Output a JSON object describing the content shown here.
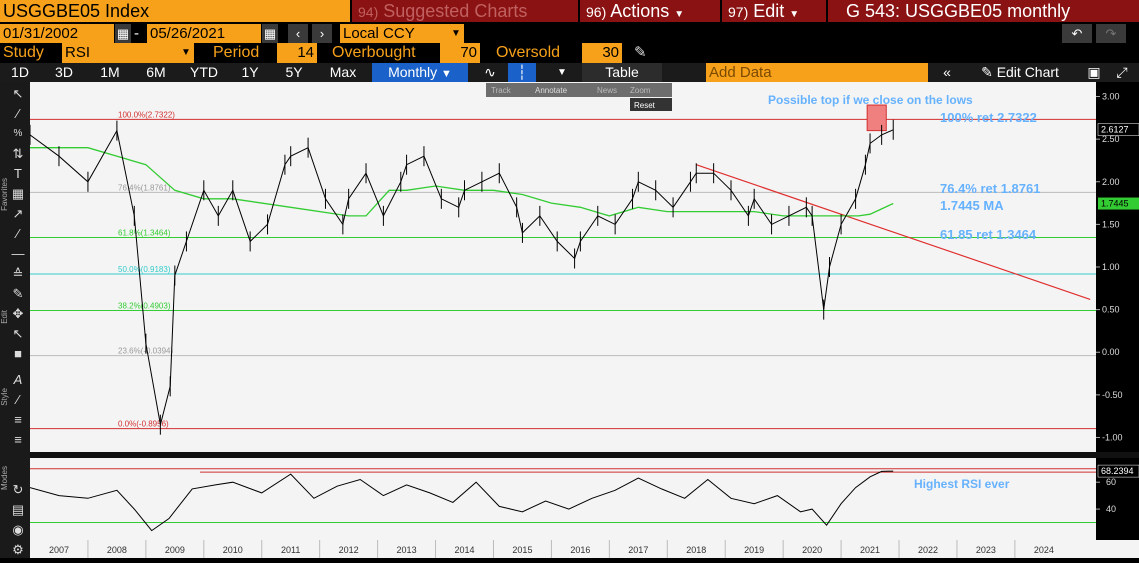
{
  "header": {
    "ticker": "USGGBE05 Index",
    "suggested_num": "94)",
    "suggested_label": "Suggested Charts",
    "actions_num": "96)",
    "actions_label": "Actions",
    "edit_num": "97)",
    "edit_label": "Edit",
    "title": "G 543: USGGBE05 monthly"
  },
  "daterange": {
    "start": "01/31/2002",
    "sep": "-",
    "end": "05/26/2021",
    "currency": "Local CCY"
  },
  "study": {
    "label": "Study",
    "value": "RSI",
    "period_label": "Period",
    "period": "14",
    "overbought_label": "Overbought",
    "overbought": "70",
    "oversold_label": "Oversold",
    "oversold": "30"
  },
  "toolbar": {
    "ranges": [
      "1D",
      "3D",
      "1M",
      "6M",
      "YTD",
      "1Y",
      "5Y",
      "Max"
    ],
    "frequency": "Monthly",
    "table_label": "Table",
    "add_data_placeholder": "Add Data",
    "edit_chart_label": "Edit Chart"
  },
  "chart_tools": {
    "track": "Track",
    "annotate": "Annotate",
    "news": "News",
    "zoom": "Zoom",
    "reset": "Reset"
  },
  "side_labels": {
    "favorites": "Favorites",
    "edit": "Edit",
    "style": "Style",
    "modes": "Modes"
  },
  "colors": {
    "orange": "#f7a11a",
    "red_tab": "#8b1212",
    "price": "#000000",
    "ma": "#33cc33",
    "trend": "#e03030",
    "annotation": "#66b2ff"
  },
  "chart_data": [
    {
      "type": "line",
      "ylim": [
        -1.1,
        3.1
      ],
      "yticks": [
        "3.00",
        "2.50",
        "2.00",
        "1.50",
        "1.00",
        "0.50",
        "0.00",
        "-0.50",
        "-1.00"
      ],
      "ytick_values": [
        3.0,
        2.5,
        2.0,
        1.5,
        1.0,
        0.5,
        0.0,
        -0.5,
        -1.0
      ],
      "last_price_label": "2.6127",
      "last_ma_label": "1.7445",
      "last_price": 2.6127,
      "last_ma": 1.7445,
      "fib_levels": [
        {
          "label": "100.0%(2.7322)",
          "value": 2.7322,
          "color": "#d23030"
        },
        {
          "label": "76.4%(1.8761)",
          "value": 1.8761,
          "color": "#bbbbbb"
        },
        {
          "label": "61.8%(1.3464)",
          "value": 1.3464,
          "color": "#33cc33"
        },
        {
          "label": "50.0%(0.9183)",
          "value": 0.9183,
          "color": "#33cccc"
        },
        {
          "label": "38.2%(0.4903)",
          "value": 0.4903,
          "color": "#33cc33"
        },
        {
          "label": "23.6%(-0.0394)",
          "value": -0.0394,
          "color": "#bbbbbb"
        },
        {
          "label": "0.0%(-0.8956)",
          "value": -0.8956,
          "color": "#d23030"
        }
      ],
      "annotations": [
        "Possible top if we close on the lows",
        "100% ret 2.7322",
        "76.4% ret 1.8761",
        "1.7445 MA",
        "61.85 ret 1.3464"
      ],
      "x": [
        2006.5,
        2007.0,
        2007.5,
        2008.0,
        2008.3,
        2008.5,
        2008.75,
        2008.92,
        2009.0,
        2009.2,
        2009.5,
        2009.75,
        2010.0,
        2010.3,
        2010.6,
        2010.9,
        2011.0,
        2011.3,
        2011.6,
        2011.9,
        2012.0,
        2012.3,
        2012.6,
        2012.9,
        2013.0,
        2013.3,
        2013.6,
        2013.9,
        2014.0,
        2014.3,
        2014.6,
        2014.9,
        2015.0,
        2015.3,
        2015.6,
        2015.9,
        2016.0,
        2016.3,
        2016.6,
        2016.9,
        2017.0,
        2017.3,
        2017.6,
        2017.9,
        2018.0,
        2018.3,
        2018.6,
        2018.9,
        2019.0,
        2019.3,
        2019.6,
        2019.9,
        2020.0,
        2020.2,
        2020.3,
        2020.5,
        2020.75,
        2020.92,
        2021.0,
        2021.2,
        2021.4
      ],
      "values": [
        2.55,
        2.3,
        2.0,
        2.6,
        1.6,
        0.1,
        -0.85,
        -0.4,
        0.9,
        1.3,
        1.9,
        1.6,
        1.9,
        1.3,
        1.5,
        2.2,
        2.3,
        2.4,
        1.8,
        1.5,
        1.8,
        2.1,
        1.6,
        2.0,
        2.2,
        2.3,
        1.8,
        1.7,
        1.9,
        2.0,
        2.1,
        1.7,
        1.4,
        1.6,
        1.3,
        1.1,
        1.3,
        1.6,
        1.5,
        1.8,
        2.0,
        1.9,
        1.7,
        2.0,
        2.1,
        2.1,
        1.9,
        1.6,
        1.8,
        1.5,
        1.6,
        1.7,
        1.6,
        0.5,
        1.0,
        1.5,
        1.8,
        2.2,
        2.45,
        2.55,
        2.61
      ],
      "ma_x": [
        2006.5,
        2007.5,
        2008.5,
        2009.0,
        2009.5,
        2010.0,
        2011.0,
        2012.0,
        2012.3,
        2012.7,
        2013.0,
        2013.5,
        2014.0,
        2014.5,
        2015.0,
        2015.5,
        2016.0,
        2016.5,
        2017.0,
        2017.5,
        2018.0,
        2018.5,
        2019.0,
        2019.5,
        2020.0,
        2020.5,
        2020.8,
        2021.0,
        2021.4
      ],
      "ma_values": [
        2.4,
        2.4,
        2.2,
        1.9,
        1.8,
        1.8,
        1.7,
        1.6,
        1.6,
        1.9,
        1.9,
        1.95,
        1.9,
        1.9,
        1.85,
        1.75,
        1.7,
        1.6,
        1.7,
        1.65,
        1.65,
        1.65,
        1.65,
        1.6,
        1.6,
        1.6,
        1.6,
        1.62,
        1.7445
      ],
      "trendline": {
        "x": [
          2018.0,
          2024.8
        ],
        "values": [
          2.2,
          0.62
        ]
      },
      "top_box": {
        "x": [
          2020.95,
          2021.28
        ],
        "values": [
          2.6,
          2.9
        ]
      }
    },
    {
      "type": "line",
      "title": "RSI",
      "ylim": [
        20,
        75
      ],
      "yticks": [
        "60",
        "40"
      ],
      "ytick_values": [
        60,
        40
      ],
      "overbought": 70,
      "oversold": 30,
      "last_label": "68.2394",
      "annotation": "Highest RSI ever",
      "x": [
        2006.5,
        2007.0,
        2007.5,
        2008.0,
        2008.3,
        2008.6,
        2008.9,
        2009.3,
        2009.7,
        2010.0,
        2010.5,
        2011.0,
        2011.4,
        2011.8,
        2012.2,
        2012.6,
        2013.0,
        2013.4,
        2013.8,
        2014.2,
        2014.6,
        2015.0,
        2015.4,
        2015.8,
        2016.2,
        2016.6,
        2017.0,
        2017.4,
        2017.8,
        2018.2,
        2018.6,
        2019.0,
        2019.4,
        2019.8,
        2020.0,
        2020.25,
        2020.5,
        2020.75,
        2021.0,
        2021.2,
        2021.4
      ],
      "values": [
        56,
        50,
        48,
        54,
        40,
        24,
        33,
        55,
        58,
        60,
        52,
        66,
        48,
        57,
        62,
        50,
        58,
        52,
        45,
        60,
        42,
        38,
        46,
        40,
        48,
        54,
        63,
        55,
        48,
        62,
        48,
        44,
        50,
        38,
        40,
        28,
        44,
        56,
        64,
        68,
        68.2
      ],
      "xlabels": [
        "2007",
        "2008",
        "2009",
        "2010",
        "2011",
        "2012",
        "2013",
        "2014",
        "2015",
        "2016",
        "2017",
        "2018",
        "2019",
        "2020",
        "2021",
        "2022",
        "2023",
        "2024"
      ]
    }
  ]
}
